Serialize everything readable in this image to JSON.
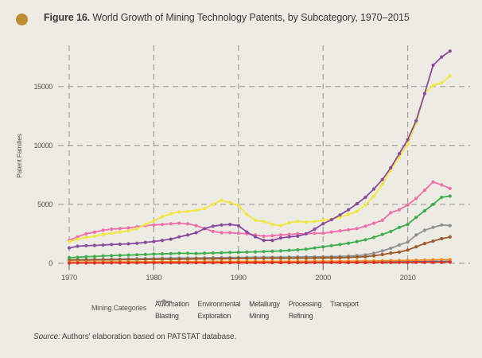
{
  "figure": {
    "title_prefix": "Figure 16.",
    "title_rest": " World Growth of Mining Technology Patents, by Subcategory, 1970–2015"
  },
  "legend": {
    "title": "Mining Categories",
    "columns": [
      [
        "Automation",
        "Blasting"
      ],
      [
        "Environmental",
        "Exploration"
      ],
      [
        "Metallurgy",
        "Mining"
      ],
      [
        "Processing",
        "Refining"
      ],
      [
        "Transport"
      ]
    ]
  },
  "source": {
    "prefix": "Source:",
    "text": " Authors' elaboration based on PATSTAT database."
  },
  "theme": {
    "background": "#edece4",
    "grid_color": "#a3a19a",
    "tick_color": "#87857e",
    "text_color": "#56544e",
    "bullet_color": "#bd8b32"
  },
  "chart_data": {
    "type": "line",
    "title": "World Growth of Mining Technology Patents, by Subcategory, 1970–2015",
    "xlabel": "",
    "ylabel": "Patent Families",
    "x": [
      1970,
      1971,
      1972,
      1973,
      1974,
      1975,
      1976,
      1977,
      1978,
      1979,
      1980,
      1981,
      1982,
      1983,
      1984,
      1985,
      1986,
      1987,
      1988,
      1989,
      1990,
      1991,
      1992,
      1993,
      1994,
      1995,
      1996,
      1997,
      1998,
      1999,
      2000,
      2001,
      2002,
      2003,
      2004,
      2005,
      2006,
      2007,
      2008,
      2009,
      2010,
      2011,
      2012,
      2013,
      2014,
      2015
    ],
    "xticks": [
      1970,
      1980,
      1990,
      2000,
      2010
    ],
    "yticks": [
      0,
      5000,
      10000,
      15000
    ],
    "ylim": [
      0,
      18500
    ],
    "grid": "dashed",
    "legend_position": "bottom",
    "series": [
      {
        "name": "Transport",
        "color": "#909090",
        "values": [
          300,
          310,
          320,
          330,
          340,
          350,
          360,
          375,
          390,
          400,
          420,
          430,
          440,
          450,
          450,
          455,
          460,
          470,
          480,
          490,
          500,
          505,
          510,
          515,
          520,
          520,
          530,
          540,
          545,
          550,
          560,
          570,
          590,
          620,
          650,
          720,
          850,
          1050,
          1280,
          1550,
          1800,
          2400,
          2800,
          3050,
          3250,
          3200
        ]
      },
      {
        "name": "Processing",
        "color": "#9c5b28",
        "values": [
          270,
          280,
          285,
          290,
          295,
          300,
          310,
          315,
          320,
          330,
          340,
          345,
          350,
          355,
          360,
          370,
          375,
          380,
          390,
          400,
          420,
          420,
          425,
          430,
          430,
          430,
          435,
          440,
          440,
          445,
          450,
          460,
          470,
          500,
          530,
          560,
          640,
          740,
          870,
          950,
          1130,
          1400,
          1680,
          1880,
          2090,
          2230
        ]
      },
      {
        "name": "Blasting",
        "color": "#2d7bc1",
        "values": [
          60,
          65,
          68,
          70,
          72,
          75,
          78,
          80,
          82,
          85,
          90,
          92,
          94,
          96,
          98,
          100,
          100,
          102,
          104,
          105,
          105,
          106,
          107,
          108,
          108,
          110,
          110,
          112,
          112,
          114,
          115,
          116,
          117,
          118,
          119,
          120,
          122,
          124,
          126,
          128,
          140,
          145,
          150,
          155,
          160,
          170
        ]
      },
      {
        "name": "Metallurgy",
        "color": "#f68b1f",
        "values": [
          100,
          105,
          110,
          115,
          120,
          125,
          128,
          130,
          135,
          138,
          140,
          142,
          145,
          148,
          150,
          150,
          152,
          155,
          158,
          160,
          160,
          162,
          163,
          165,
          165,
          168,
          170,
          172,
          174,
          176,
          180,
          182,
          185,
          190,
          195,
          200,
          205,
          215,
          230,
          240,
          250,
          265,
          280,
          300,
          310,
          320
        ]
      },
      {
        "name": "Automation",
        "color": "#e03127",
        "values": [
          30,
          32,
          34,
          35,
          36,
          38,
          40,
          40,
          42,
          44,
          45,
          46,
          47,
          48,
          48,
          50,
          50,
          50,
          52,
          52,
          55,
          55,
          56,
          56,
          58,
          58,
          60,
          60,
          62,
          62,
          65,
          65,
          66,
          68,
          68,
          70,
          72,
          74,
          76,
          78,
          80,
          85,
          88,
          92,
          95,
          100
        ]
      },
      {
        "name": "Environmental",
        "color": "#3fae4c",
        "values": [
          470,
          520,
          560,
          580,
          620,
          650,
          680,
          700,
          720,
          750,
          780,
          800,
          820,
          850,
          850,
          830,
          850,
          880,
          900,
          920,
          940,
          950,
          970,
          1000,
          1020,
          1050,
          1100,
          1150,
          1200,
          1300,
          1400,
          1500,
          1600,
          1700,
          1850,
          2000,
          2200,
          2450,
          2700,
          3050,
          3300,
          3900,
          4450,
          5000,
          5600,
          5700
        ]
      },
      {
        "name": "Refining",
        "color": "#ef6fab",
        "values": [
          1950,
          2250,
          2500,
          2650,
          2800,
          2900,
          2950,
          3000,
          3100,
          3200,
          3250,
          3300,
          3350,
          3400,
          3350,
          3200,
          2950,
          2700,
          2600,
          2600,
          2550,
          2500,
          2400,
          2300,
          2350,
          2400,
          2450,
          2500,
          2500,
          2550,
          2550,
          2650,
          2750,
          2850,
          2950,
          3150,
          3400,
          3650,
          4300,
          4550,
          4950,
          5500,
          6200,
          6900,
          6650,
          6350
        ]
      },
      {
        "name": "Mining",
        "color": "#f2e73e",
        "values": [
          1850,
          2050,
          2200,
          2300,
          2450,
          2550,
          2650,
          2750,
          2950,
          3300,
          3600,
          3950,
          4200,
          4350,
          4400,
          4500,
          4650,
          5000,
          5350,
          5150,
          4900,
          4150,
          3650,
          3550,
          3300,
          3200,
          3450,
          3550,
          3500,
          3550,
          3650,
          3750,
          3900,
          4150,
          4400,
          4950,
          5700,
          6700,
          7900,
          9000,
          10100,
          11900,
          14400,
          15100,
          15300,
          15900
        ]
      },
      {
        "name": "Exploration",
        "color": "#8c4a9e",
        "values": [
          1300,
          1450,
          1500,
          1520,
          1550,
          1600,
          1620,
          1650,
          1700,
          1780,
          1850,
          1950,
          2050,
          2250,
          2400,
          2600,
          2950,
          3150,
          3250,
          3300,
          3200,
          2650,
          2250,
          1950,
          1950,
          2150,
          2250,
          2300,
          2500,
          2900,
          3350,
          3700,
          4100,
          4550,
          5050,
          5600,
          6300,
          7100,
          8100,
          9300,
          10500,
          12100,
          14400,
          16800,
          17500,
          18000
        ]
      }
    ]
  }
}
